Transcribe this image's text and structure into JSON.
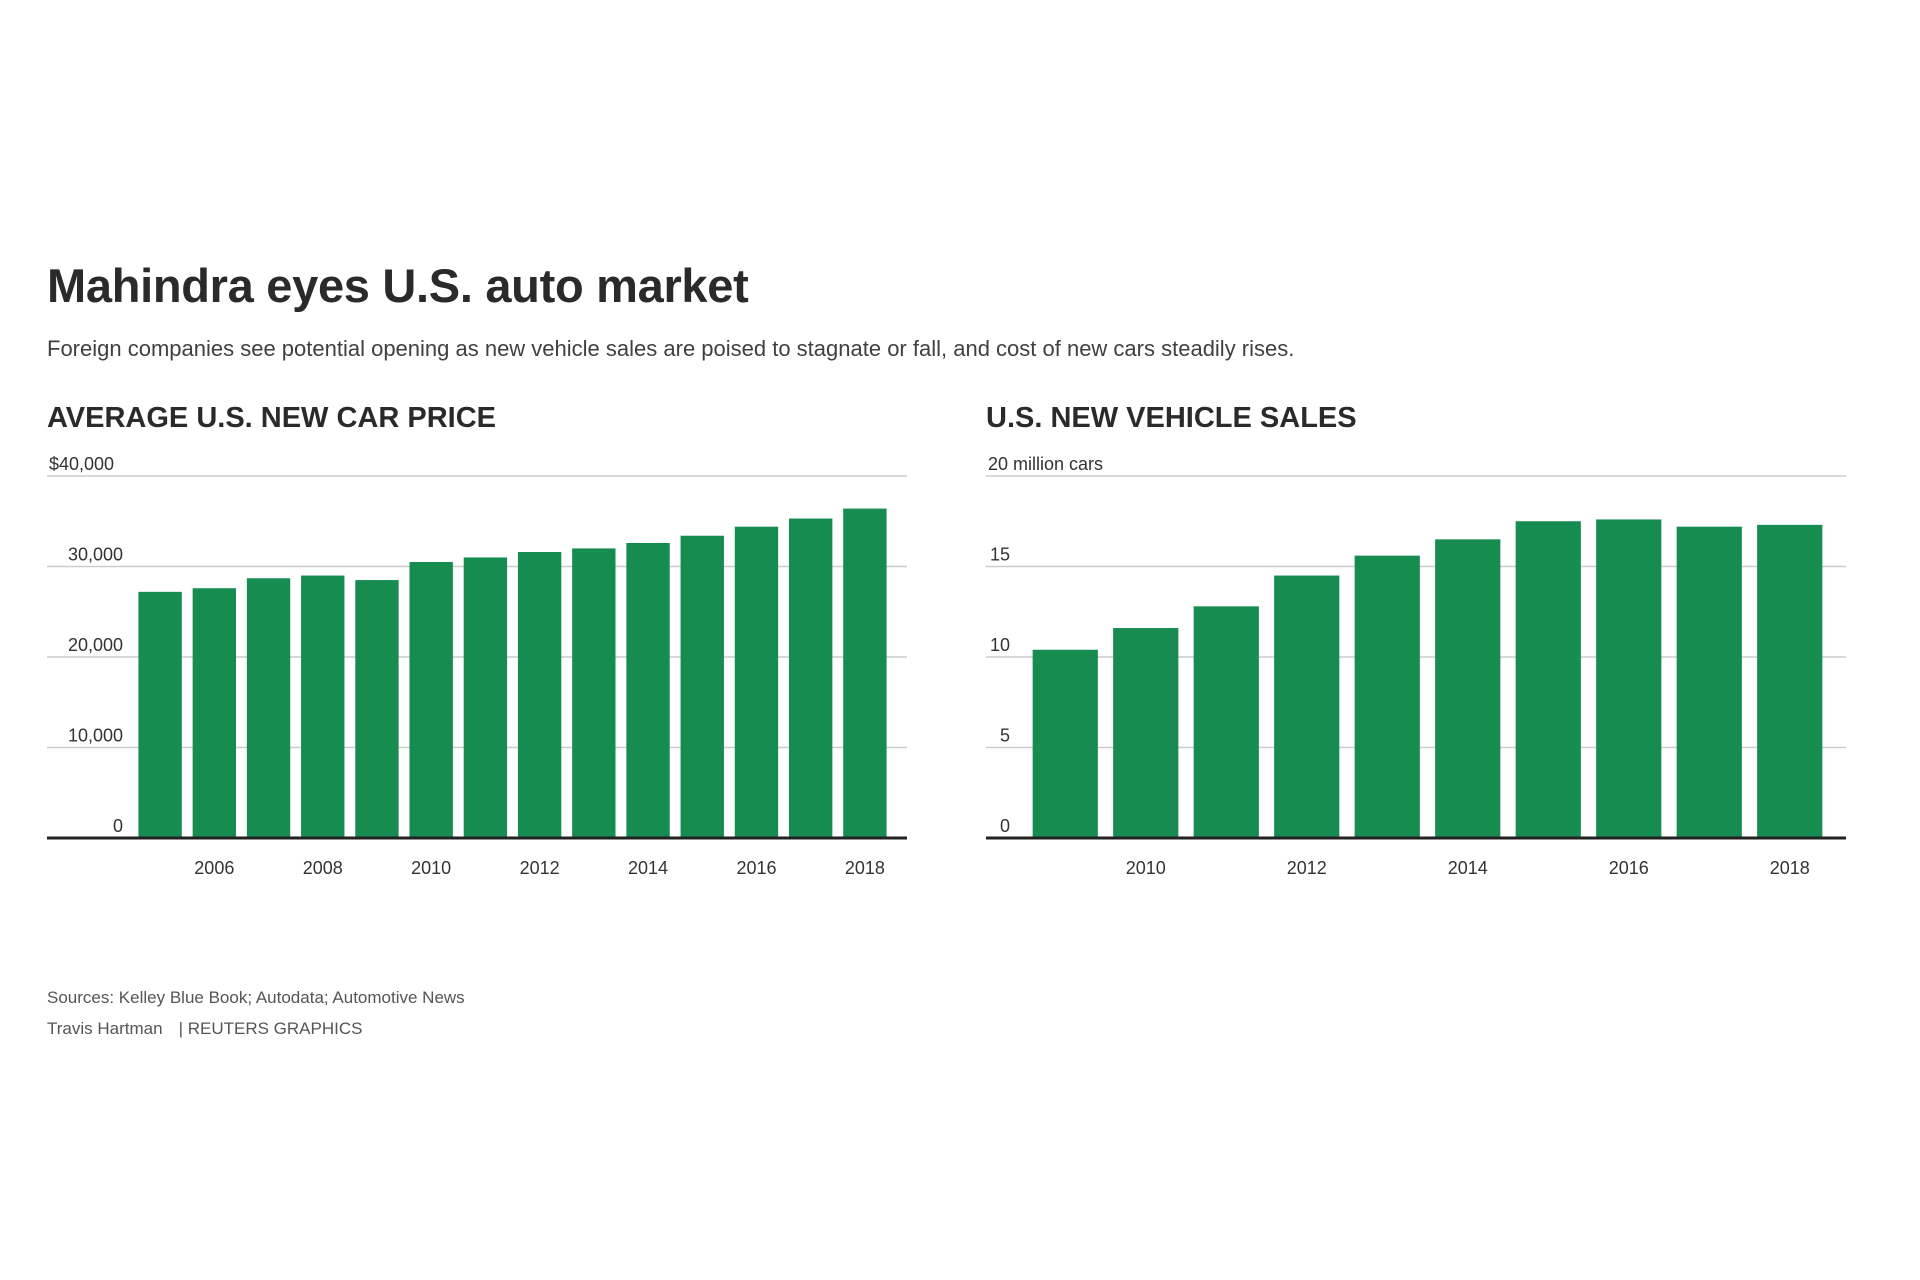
{
  "header": {
    "title": "Mahindra eyes U.S. auto market",
    "subtitle": "Foreign companies see potential opening as new vehicle sales are poised to stagnate or fall, and cost of new cars steadily rises."
  },
  "footer": {
    "sources": "Sources: Kelley Blue Book; Autodata; Automotive News",
    "author": "Travis Hartman",
    "credit": "| REUTERS GRAPHICS"
  },
  "colors": {
    "bar": "#168c50",
    "grid": "#cccccc",
    "axis": "#222222"
  },
  "chart_data": [
    {
      "type": "bar",
      "title": "AVERAGE U.S. NEW CAR PRICE",
      "xlabel": "",
      "ylabel": "",
      "categories": [
        2005,
        2006,
        2007,
        2008,
        2009,
        2010,
        2011,
        2012,
        2013,
        2014,
        2015,
        2016,
        2017,
        2018
      ],
      "values": [
        27200,
        27600,
        28700,
        29000,
        28500,
        30500,
        31000,
        31600,
        32000,
        32600,
        33400,
        34400,
        35300,
        36400
      ],
      "ylim": [
        0,
        40000
      ],
      "yticks": [
        0,
        10000,
        20000,
        30000,
        40000
      ],
      "ytick_labels": [
        "0",
        "10,000",
        "20,000",
        "30,000",
        "$40,000"
      ],
      "xticks": [
        2006,
        2008,
        2010,
        2012,
        2014,
        2016,
        2018
      ],
      "xtick_labels": [
        "2006",
        "2008",
        "2010",
        "2012",
        "2014",
        "2016",
        "2018"
      ],
      "grid": true
    },
    {
      "type": "bar",
      "title": "U.S. NEW VEHICLE SALES",
      "xlabel": "",
      "ylabel": "",
      "categories": [
        2009,
        2010,
        2011,
        2012,
        2013,
        2014,
        2015,
        2016,
        2017,
        2018
      ],
      "values": [
        10.4,
        11.6,
        12.8,
        14.5,
        15.6,
        16.5,
        17.5,
        17.6,
        17.2,
        17.3
      ],
      "ylim": [
        0,
        20
      ],
      "yticks": [
        0,
        5,
        10,
        15,
        20
      ],
      "ytick_labels": [
        "0",
        "5",
        "10",
        "15",
        "20 million cars"
      ],
      "xticks": [
        2010,
        2012,
        2014,
        2016,
        2018
      ],
      "xtick_labels": [
        "2010",
        "2012",
        "2014",
        "2016",
        "2018"
      ],
      "grid": true
    }
  ]
}
